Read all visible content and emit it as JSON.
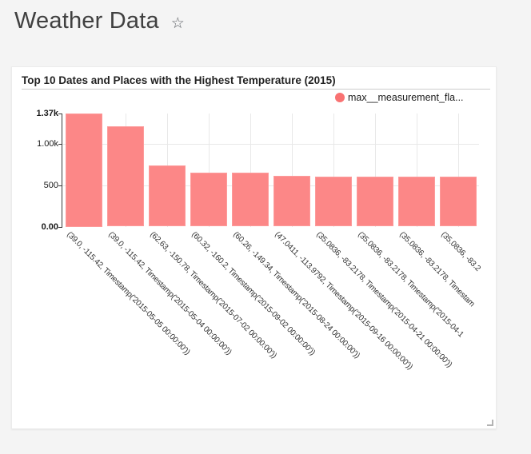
{
  "header": {
    "title": "Weather Data",
    "favorite_icon": "star-outline"
  },
  "card": {
    "title": "Top 10 Dates and Places with the Highest Temperature (2015)",
    "legend": {
      "label": "max__measurement_fla...",
      "dot_color": "#f97272"
    }
  },
  "colors": {
    "bar_fill": "#fc8787",
    "bar_border": "#fd9b9b",
    "page_background": "#f4f4f4",
    "card_background": "#ffffff",
    "gridline": "#e8e8e8",
    "axis_line": "#3a3a3a"
  },
  "chart_data": {
    "type": "bar",
    "title": "Top 10 Dates and Places with the Highest Temperature (2015)",
    "legend_entries": [
      "max__measurement_fla..."
    ],
    "legend_position": "top-right",
    "grid": true,
    "xlabel": "",
    "ylabel": "",
    "ylim": [
      0,
      1370
    ],
    "yticks": [
      {
        "value": 0,
        "label": "0.00",
        "bold": true
      },
      {
        "value": 500,
        "label": "500",
        "bold": false
      },
      {
        "value": 1000,
        "label": "1.00k",
        "bold": false
      },
      {
        "value": 1370,
        "label": "1.37k",
        "bold": true
      }
    ],
    "categories": [
      "(39.0, -115.42, Timestamp('2015-05-05 00:00:00'))",
      "(39.0, -115.42, Timestamp('2015-05-04 00:00:00'))",
      "(62.63, -150.78, Timestamp('2015-07-02 00:00:00'))",
      "(60.32, -160.2, Timestamp('2015-09-02 00:00:00'))",
      "(60.26, -149.34, Timestamp('2015-08-24 00:00:00'))",
      "(47.0411, -113.9792, Timestamp('2015-09-16 00:00:00'))",
      "(35.0836, -83.2178, Timestamp('2015-04-21 00:00:00'))",
      "(35.0836, -83.2178, Timestamp('2015-04-1",
      "(35.0836, -83.2178, Timestam",
      "(35.0836, -83.2"
    ],
    "values": [
      1370,
      1212,
      738,
      655,
      648,
      615,
      604,
      603,
      602,
      600
    ]
  }
}
